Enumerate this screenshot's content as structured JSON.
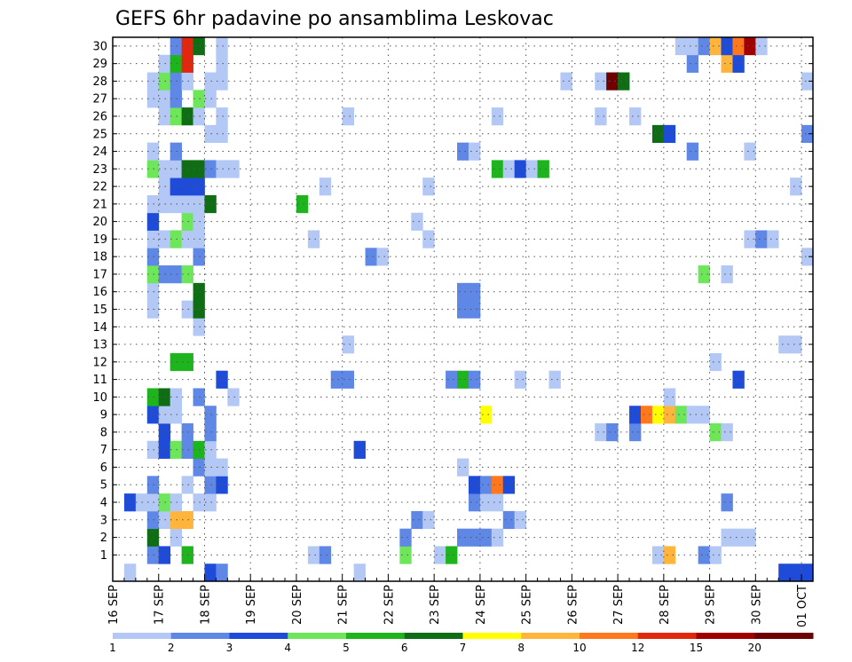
{
  "chart_data": {
    "type": "heatmap",
    "title": "GEFS 6hr padavine po ansamblima Leskovac",
    "y_tick_labels": [
      "1",
      "2",
      "3",
      "4",
      "5",
      "6",
      "7",
      "8",
      "9",
      "10",
      "11",
      "12",
      "13",
      "14",
      "15",
      "16",
      "17",
      "18",
      "19",
      "20",
      "21",
      "22",
      "23",
      "24",
      "25",
      "26",
      "27",
      "28",
      "29",
      "30"
    ],
    "y_range": [
      0,
      30
    ],
    "x_tick_labels": [
      "16 SEP",
      "17 SEP",
      "18 SEP",
      "19 SEP",
      "20 SEP",
      "21 SEP",
      "22 SEP",
      "23 SEP",
      "24 SEP",
      "25 SEP",
      "26 SEP",
      "27 SEP",
      "28 SEP",
      "29 SEP",
      "30 SEP",
      "01 OCT"
    ],
    "x_steps_total": 61,
    "x_steps_per_day": 4,
    "grid": true,
    "colorbar": {
      "labels": [
        "1",
        "2",
        "3",
        "4",
        "5",
        "6",
        "7",
        "8",
        "10",
        "12",
        "15",
        "20"
      ],
      "colors": [
        "#b4c8f5",
        "#5f87e6",
        "#1e4bd7",
        "#6ee65a",
        "#1eb41e",
        "#0f6e14",
        "#ffff00",
        "#ffb43c",
        "#ff781e",
        "#e1280f",
        "#a00000",
        "#6e0000"
      ]
    },
    "cells": [
      [
        1,
        3,
        2
      ],
      [
        1,
        4,
        3
      ],
      [
        1,
        6,
        5
      ],
      [
        1,
        17,
        1
      ],
      [
        1,
        18,
        2
      ],
      [
        1,
        25,
        4
      ],
      [
        1,
        28,
        1
      ],
      [
        1,
        29,
        5
      ],
      [
        1,
        47,
        1
      ],
      [
        1,
        48,
        8
      ],
      [
        1,
        51,
        2
      ],
      [
        1,
        52,
        1
      ],
      [
        2,
        3,
        6
      ],
      [
        2,
        5,
        1
      ],
      [
        2,
        25,
        2
      ],
      [
        2,
        30,
        2
      ],
      [
        2,
        31,
        2
      ],
      [
        2,
        32,
        2
      ],
      [
        2,
        33,
        1
      ],
      [
        2,
        53,
        1
      ],
      [
        2,
        54,
        1
      ],
      [
        2,
        55,
        1
      ],
      [
        3,
        3,
        2
      ],
      [
        3,
        4,
        1
      ],
      [
        3,
        5,
        8
      ],
      [
        3,
        6,
        8
      ],
      [
        3,
        26,
        2
      ],
      [
        3,
        27,
        1
      ],
      [
        3,
        34,
        2
      ],
      [
        3,
        35,
        1
      ],
      [
        4,
        1,
        3
      ],
      [
        4,
        2,
        1
      ],
      [
        4,
        3,
        1
      ],
      [
        4,
        4,
        4
      ],
      [
        4,
        5,
        1
      ],
      [
        4,
        7,
        1
      ],
      [
        4,
        8,
        1
      ],
      [
        4,
        31,
        2
      ],
      [
        4,
        32,
        1
      ],
      [
        4,
        33,
        1
      ],
      [
        4,
        53,
        2
      ],
      [
        5,
        3,
        2
      ],
      [
        5,
        6,
        1
      ],
      [
        5,
        8,
        2
      ],
      [
        5,
        9,
        3
      ],
      [
        5,
        31,
        3
      ],
      [
        5,
        32,
        2
      ],
      [
        5,
        33,
        9
      ],
      [
        5,
        34,
        3
      ],
      [
        6,
        7,
        2
      ],
      [
        6,
        8,
        1
      ],
      [
        6,
        9,
        1
      ],
      [
        6,
        30,
        1
      ],
      [
        7,
        3,
        1
      ],
      [
        7,
        4,
        3
      ],
      [
        7,
        5,
        4
      ],
      [
        7,
        6,
        2
      ],
      [
        7,
        7,
        5
      ],
      [
        7,
        8,
        1
      ],
      [
        7,
        21,
        3
      ],
      [
        8,
        4,
        3
      ],
      [
        8,
        6,
        2
      ],
      [
        8,
        8,
        2
      ],
      [
        8,
        42,
        1
      ],
      [
        8,
        43,
        2
      ],
      [
        8,
        45,
        2
      ],
      [
        8,
        52,
        4
      ],
      [
        8,
        53,
        1
      ],
      [
        9,
        3,
        3
      ],
      [
        9,
        4,
        1
      ],
      [
        9,
        5,
        1
      ],
      [
        9,
        8,
        2
      ],
      [
        9,
        32,
        7
      ],
      [
        9,
        45,
        3
      ],
      [
        9,
        46,
        9
      ],
      [
        9,
        47,
        7
      ],
      [
        9,
        48,
        8
      ],
      [
        9,
        49,
        4
      ],
      [
        9,
        50,
        1
      ],
      [
        9,
        51,
        1
      ],
      [
        10,
        3,
        5
      ],
      [
        10,
        4,
        6
      ],
      [
        10,
        5,
        1
      ],
      [
        10,
        7,
        2
      ],
      [
        10,
        10,
        1
      ],
      [
        10,
        48,
        1
      ],
      [
        11,
        9,
        3
      ],
      [
        11,
        19,
        2
      ],
      [
        11,
        20,
        2
      ],
      [
        11,
        29,
        2
      ],
      [
        11,
        30,
        5
      ],
      [
        11,
        31,
        2
      ],
      [
        11,
        35,
        1
      ],
      [
        11,
        38,
        1
      ],
      [
        11,
        54,
        3
      ],
      [
        12,
        5,
        5
      ],
      [
        12,
        6,
        5
      ],
      [
        12,
        52,
        1
      ],
      [
        13,
        20,
        1
      ],
      [
        13,
        58,
        1
      ],
      [
        13,
        59,
        1
      ],
      [
        14,
        7,
        1
      ],
      [
        15,
        3,
        1
      ],
      [
        15,
        6,
        1
      ],
      [
        15,
        7,
        6
      ],
      [
        15,
        30,
        2
      ],
      [
        15,
        31,
        2
      ],
      [
        16,
        3,
        1
      ],
      [
        16,
        7,
        6
      ],
      [
        16,
        30,
        2
      ],
      [
        16,
        31,
        2
      ],
      [
        17,
        3,
        4
      ],
      [
        17,
        4,
        2
      ],
      [
        17,
        5,
        2
      ],
      [
        17,
        6,
        4
      ],
      [
        17,
        51,
        4
      ],
      [
        17,
        53,
        1
      ],
      [
        18,
        3,
        2
      ],
      [
        18,
        7,
        2
      ],
      [
        18,
        22,
        2
      ],
      [
        18,
        23,
        1
      ],
      [
        18,
        60,
        1
      ],
      [
        19,
        3,
        1
      ],
      [
        19,
        4,
        1
      ],
      [
        19,
        5,
        4
      ],
      [
        19,
        6,
        1
      ],
      [
        19,
        7,
        1
      ],
      [
        19,
        17,
        1
      ],
      [
        19,
        27,
        1
      ],
      [
        19,
        55,
        1
      ],
      [
        19,
        56,
        2
      ],
      [
        19,
        57,
        1
      ],
      [
        20,
        3,
        3
      ],
      [
        20,
        6,
        4
      ],
      [
        20,
        7,
        1
      ],
      [
        20,
        26,
        1
      ],
      [
        21,
        3,
        1
      ],
      [
        21,
        4,
        1
      ],
      [
        21,
        5,
        1
      ],
      [
        21,
        6,
        1
      ],
      [
        21,
        7,
        1
      ],
      [
        21,
        8,
        6
      ],
      [
        21,
        16,
        5
      ],
      [
        22,
        4,
        1
      ],
      [
        22,
        5,
        3
      ],
      [
        22,
        6,
        3
      ],
      [
        22,
        7,
        3
      ],
      [
        22,
        18,
        1
      ],
      [
        22,
        27,
        1
      ],
      [
        22,
        59,
        1
      ],
      [
        23,
        3,
        4
      ],
      [
        23,
        4,
        1
      ],
      [
        23,
        5,
        1
      ],
      [
        23,
        6,
        6
      ],
      [
        23,
        7,
        6
      ],
      [
        23,
        8,
        2
      ],
      [
        23,
        9,
        1
      ],
      [
        23,
        10,
        1
      ],
      [
        23,
        33,
        5
      ],
      [
        23,
        34,
        1
      ],
      [
        23,
        35,
        3
      ],
      [
        23,
        36,
        1
      ],
      [
        23,
        37,
        5
      ],
      [
        24,
        3,
        1
      ],
      [
        24,
        5,
        2
      ],
      [
        24,
        30,
        2
      ],
      [
        24,
        31,
        1
      ],
      [
        24,
        50,
        2
      ],
      [
        24,
        55,
        1
      ],
      [
        25,
        8,
        1
      ],
      [
        25,
        9,
        1
      ],
      [
        25,
        47,
        6
      ],
      [
        25,
        48,
        3
      ],
      [
        25,
        60,
        2
      ],
      [
        26,
        4,
        1
      ],
      [
        26,
        5,
        4
      ],
      [
        26,
        6,
        6
      ],
      [
        26,
        7,
        1
      ],
      [
        26,
        9,
        1
      ],
      [
        26,
        20,
        1
      ],
      [
        26,
        33,
        1
      ],
      [
        26,
        42,
        1
      ],
      [
        26,
        45,
        1
      ],
      [
        27,
        3,
        1
      ],
      [
        27,
        4,
        1
      ],
      [
        27,
        5,
        2
      ],
      [
        27,
        7,
        4
      ],
      [
        27,
        8,
        1
      ],
      [
        28,
        3,
        1
      ],
      [
        28,
        4,
        4
      ],
      [
        28,
        5,
        2
      ],
      [
        28,
        6,
        1
      ],
      [
        28,
        8,
        1
      ],
      [
        28,
        9,
        1
      ],
      [
        28,
        39,
        1
      ],
      [
        28,
        42,
        1
      ],
      [
        28,
        43,
        12
      ],
      [
        28,
        44,
        6
      ],
      [
        28,
        60,
        1
      ],
      [
        29,
        4,
        1
      ],
      [
        29,
        5,
        5
      ],
      [
        29,
        6,
        10
      ],
      [
        29,
        9,
        1
      ],
      [
        29,
        50,
        2
      ],
      [
        29,
        53,
        8
      ],
      [
        29,
        54,
        3
      ],
      [
        30,
        5,
        2
      ],
      [
        30,
        6,
        10
      ],
      [
        30,
        7,
        6
      ],
      [
        30,
        9,
        1
      ],
      [
        30,
        49,
        1
      ],
      [
        30,
        50,
        1
      ],
      [
        30,
        51,
        2
      ],
      [
        30,
        52,
        8
      ],
      [
        30,
        53,
        3
      ],
      [
        30,
        54,
        9
      ],
      [
        30,
        55,
        11
      ],
      [
        30,
        56,
        1
      ],
      [
        0,
        1,
        1
      ],
      [
        0,
        8,
        3
      ],
      [
        0,
        9,
        2
      ],
      [
        0,
        21,
        1
      ],
      [
        0,
        58,
        3
      ],
      [
        0,
        59,
        3
      ],
      [
        0,
        60,
        3
      ]
    ]
  }
}
